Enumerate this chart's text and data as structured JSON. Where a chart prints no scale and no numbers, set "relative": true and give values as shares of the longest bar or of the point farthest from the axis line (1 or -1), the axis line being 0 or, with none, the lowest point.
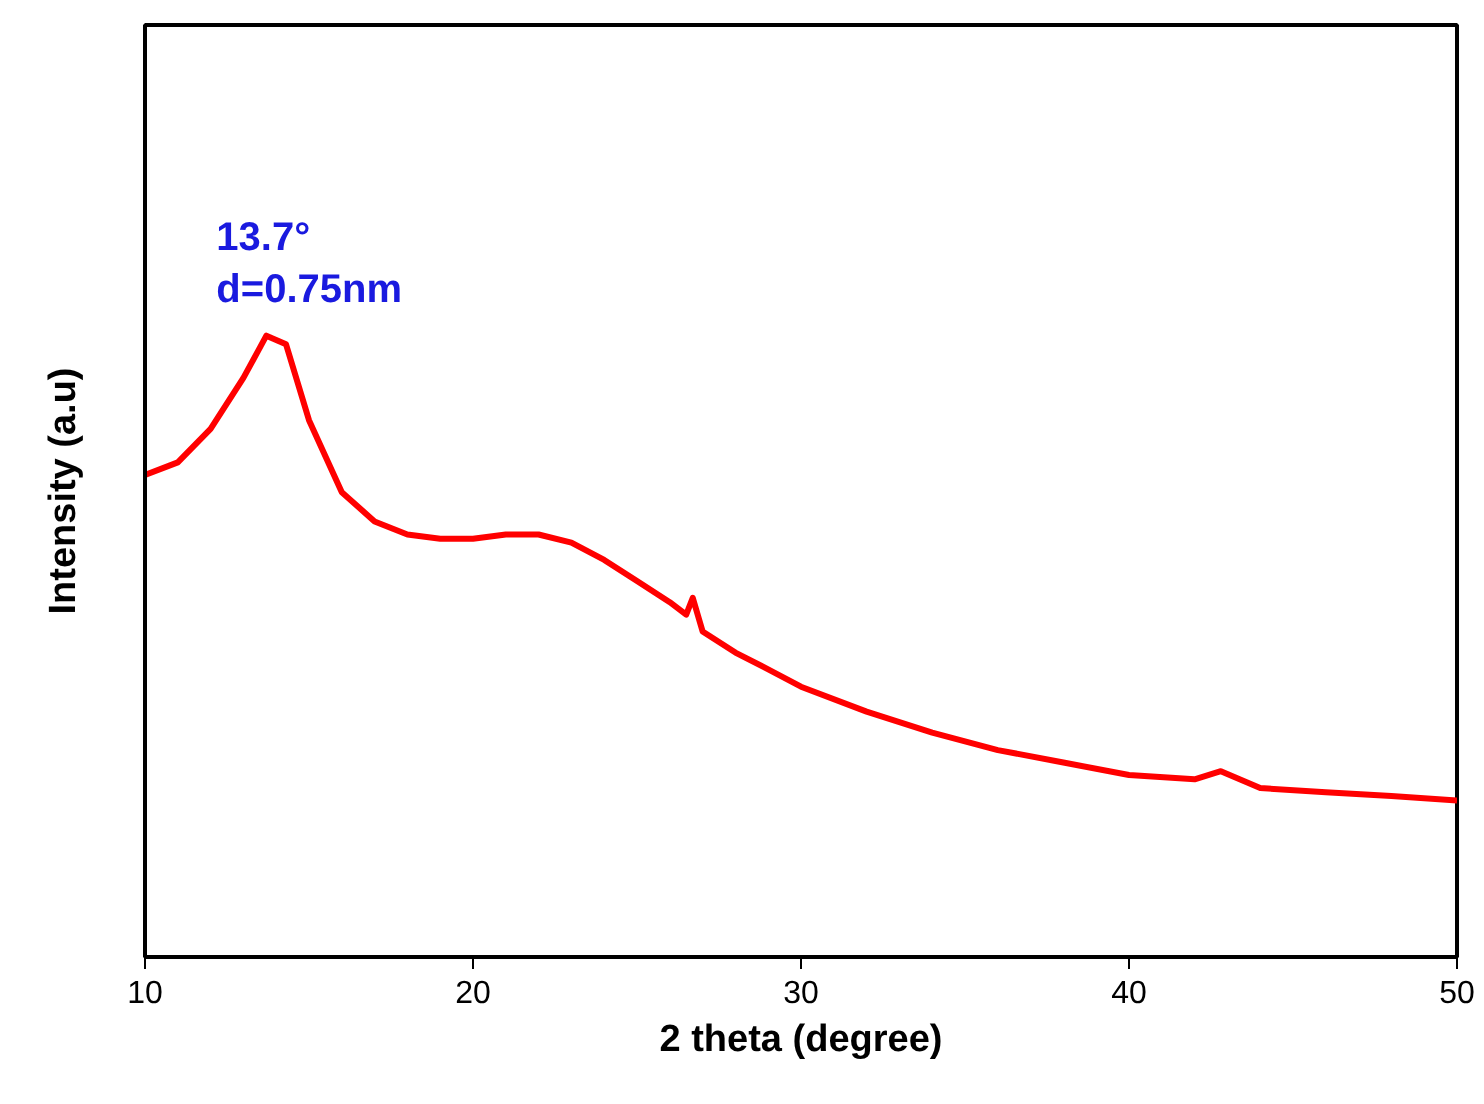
{
  "chart_data": {
    "type": "line",
    "xlabel": "2 theta (degree)",
    "ylabel": "Intensity (a.u)",
    "relative": true,
    "xlim": [
      10,
      50
    ],
    "xticks": [
      10,
      20,
      30,
      40,
      50
    ],
    "grid": false,
    "marker": "none",
    "line_style": "solid",
    "annotations": [
      {
        "text": "13.7°",
        "x": 13.7,
        "y": 1.0
      },
      {
        "text": "d=0.75nm",
        "x": 13.7,
        "y": 1.0
      }
    ],
    "x": [
      10,
      11,
      12,
      13,
      13.7,
      14.3,
      15,
      16,
      17,
      18,
      19,
      20,
      21,
      22,
      23,
      24,
      25,
      26,
      26.5,
      26.7,
      27,
      28,
      29,
      30,
      32,
      34,
      36,
      38,
      40,
      42,
      42.8,
      44,
      46,
      48,
      50
    ],
    "series": [
      {
        "color": "#ff0000",
        "values": [
          0.776,
          0.796,
          0.85,
          0.932,
          1.0,
          0.986,
          0.864,
          0.748,
          0.701,
          0.68,
          0.673,
          0.673,
          0.68,
          0.68,
          0.667,
          0.639,
          0.605,
          0.571,
          0.551,
          0.578,
          0.524,
          0.49,
          0.463,
          0.435,
          0.395,
          0.361,
          0.333,
          0.313,
          0.293,
          0.286,
          0.299,
          0.272,
          0.265,
          0.259,
          0.252
        ]
      }
    ]
  }
}
